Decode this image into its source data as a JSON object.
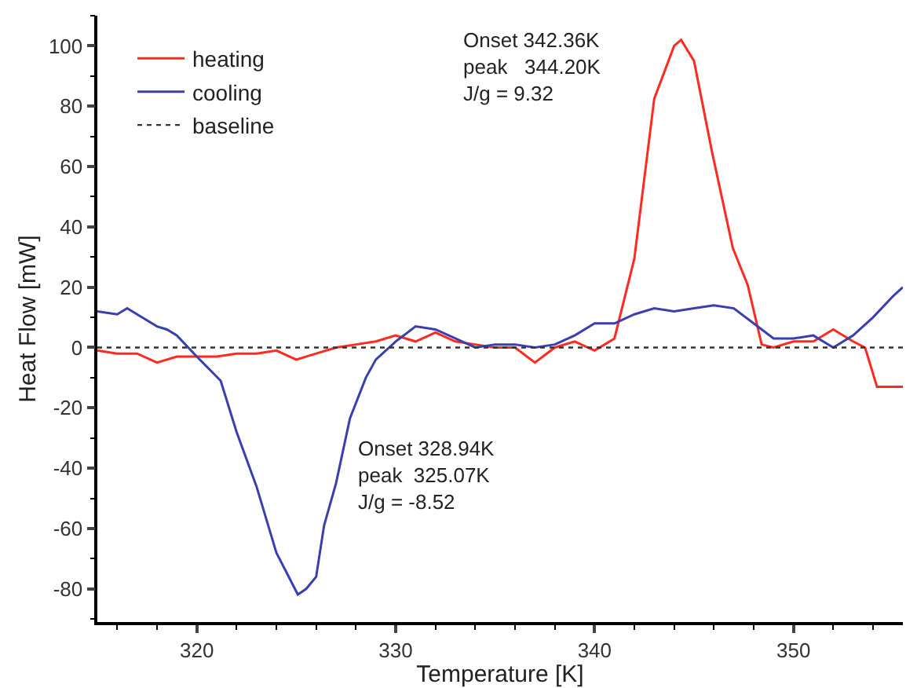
{
  "chart_data": {
    "type": "line",
    "xlabel": "Temperature [K]",
    "ylabel": "Heat Flow [mW]",
    "xlim": [
      315,
      355.5
    ],
    "xticks": [
      320,
      330,
      340,
      350
    ],
    "ylim": [
      -91,
      110
    ],
    "yticks": [
      -80,
      -60,
      -40,
      -20,
      0,
      20,
      40,
      60,
      80,
      100
    ],
    "legend": "top left",
    "line_style": "solid",
    "marker": "none",
    "series": [
      {
        "name": "heating",
        "color": "#ff2a1f",
        "x": [
          315,
          316,
          317,
          318,
          319,
          320,
          321,
          322,
          323,
          324,
          325,
          326,
          327,
          328,
          329,
          330,
          331,
          332,
          333,
          334,
          335,
          336,
          337,
          338,
          339,
          340,
          341,
          342,
          343,
          344,
          344.35,
          345,
          345.9,
          346.95,
          347.7,
          348.4,
          349,
          350,
          351,
          352,
          353,
          353.6,
          354.2,
          355,
          355.5
        ],
        "values": [
          -1,
          -2,
          -2,
          -5,
          -3,
          -3,
          -3,
          -2,
          -2,
          -1,
          -4,
          -2,
          0,
          1,
          2,
          4,
          2,
          5,
          2,
          1,
          0,
          0,
          -5,
          0,
          2,
          -1,
          3,
          29.5,
          82.5,
          100,
          102,
          95,
          65,
          33,
          20.7,
          1,
          0,
          2,
          2,
          6,
          2,
          0,
          -13,
          -13,
          -13
        ]
      },
      {
        "name": "cooling",
        "color": "#3a3fb0",
        "x": [
          315,
          316,
          316.5,
          317,
          318,
          318.5,
          319,
          320,
          321.2,
          322,
          323,
          324,
          325.08,
          325.5,
          326,
          326.4,
          327,
          327.7,
          328.5,
          329,
          330,
          331,
          332,
          333,
          334,
          335,
          336,
          337,
          338,
          339,
          340,
          341,
          342,
          343,
          344,
          345,
          346,
          347,
          348,
          349,
          350,
          351,
          352,
          353,
          354,
          355,
          355.5
        ],
        "values": [
          12,
          11,
          13,
          11,
          7,
          6,
          4,
          -3,
          -11,
          -28,
          -46,
          -68,
          -81.9,
          -80,
          -76,
          -59,
          -45,
          -23.5,
          -10,
          -4,
          2,
          7,
          6,
          3,
          0,
          1,
          1,
          0,
          1,
          4,
          8,
          8,
          11,
          13,
          12,
          13,
          14,
          13,
          8,
          3,
          3,
          4,
          0,
          4,
          10,
          17,
          20
        ]
      }
    ],
    "ref_lines": [
      {
        "axis": "y",
        "value": 0,
        "label": "baseline",
        "color": "#333333",
        "line_style": "dotted"
      }
    ],
    "annotations": [
      "Onset 342.36K\npeak   344.20K\nJ/g = 9.32",
      "Onset 328.94K\npeak  325.07K\nJ/g = -8.52"
    ]
  }
}
